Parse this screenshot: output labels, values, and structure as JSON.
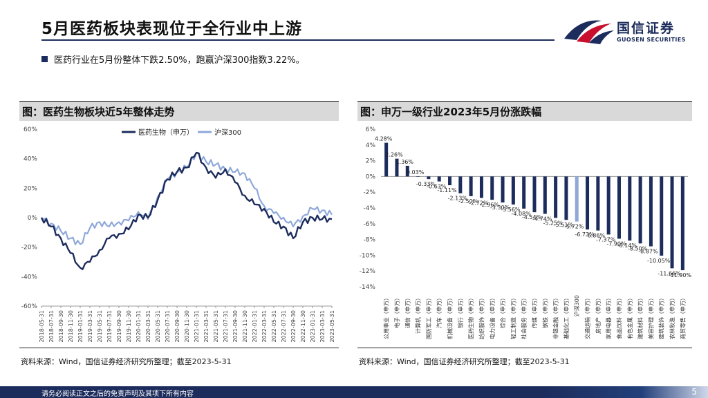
{
  "header": {
    "title": "5月医药板块表现位于全行业中上游"
  },
  "logo": {
    "cn": "国信证券",
    "en": "GUOSEN SECURITIES"
  },
  "summary": {
    "text": "医药行业在5月份整体下跌2.50%，跑赢沪深300指数3.22%。"
  },
  "left_panel": {
    "title": "图：医药生物板块近5年整体走势",
    "source": "资料来源：Wind，国信证券经济研究所整理；截至2023-5-31"
  },
  "right_panel": {
    "title": "图：申万一级行业2023年5月份涨跌幅",
    "source": "资料来源：Wind，国信证券经济研究所整理；截至2023-5-31"
  },
  "footer": {
    "disclaimer": "请务必阅读正文之后的免责声明及其项下所有内容",
    "page": "5"
  },
  "colors": {
    "dark": "#1c2c5c",
    "light": "#8fa8da",
    "brand_red": "#c8102e"
  },
  "chart_data": [
    {
      "type": "line",
      "title": "",
      "ylim": [
        -60,
        60
      ],
      "yticks": [
        60,
        40,
        20,
        0,
        -20,
        -40,
        -60
      ],
      "ytick_labels": [
        "60%",
        "40%",
        "20%",
        "0%",
        "-20%",
        "-40%",
        "-60%"
      ],
      "x": [
        "2018-05-31",
        "2018-07-31",
        "2018-09-30",
        "2018-11-30",
        "2019-01-31",
        "2019-03-31",
        "2019-05-31",
        "2019-07-31",
        "2019-09-30",
        "2019-11-30",
        "2020-01-31",
        "2020-03-31",
        "2020-05-31",
        "2020-07-31",
        "2020-09-30",
        "2020-11-30",
        "2021-01-31",
        "2021-03-31",
        "2021-05-31",
        "2021-07-31",
        "2021-09-30",
        "2021-11-30",
        "2022-01-31",
        "2022-03-31",
        "2022-05-31",
        "2022-07-31",
        "2022-09-30",
        "2022-11-30",
        "2023-01-31",
        "2023-03-31",
        "2023-05-31"
      ],
      "legend": [
        "医药生物（申万）",
        "沪深300"
      ],
      "series": [
        {
          "name": "医药生物（申万）",
          "color": "#1c2c5c",
          "width": 2.4,
          "values": [
            0,
            -6,
            -14,
            -24,
            -34,
            -30,
            -22,
            -14,
            -11,
            -8,
            2,
            0,
            12,
            26,
            31,
            34,
            44,
            34,
            27,
            33,
            24,
            15,
            9,
            6,
            -3,
            -6,
            -14,
            -3,
            0,
            -1,
            -1
          ]
        },
        {
          "name": "沪深300",
          "color": "#8fa8da",
          "width": 2.2,
          "values": [
            0,
            -4,
            -9,
            -14,
            -18,
            -7,
            -3,
            -6,
            -3,
            -2,
            4,
            -1,
            14,
            26,
            31,
            34,
            44,
            38,
            36,
            33,
            31,
            30,
            20,
            8,
            3,
            0,
            -6,
            1,
            6,
            5,
            2
          ]
        }
      ]
    },
    {
      "type": "bar",
      "title": "",
      "ylim": [
        -14,
        6
      ],
      "yticks": [
        6,
        4,
        2,
        0,
        -2,
        -4,
        -6,
        -8,
        -10,
        -12,
        -14
      ],
      "ytick_labels": [
        "6%",
        "4%",
        "2%",
        "0%",
        "-2%",
        "-4%",
        "-6%",
        "-8%",
        "-10%",
        "-12%",
        "-14%"
      ],
      "categories": [
        "公用事业（申万）",
        "电子（申万）",
        "通信（申万）",
        "计算机（申万）",
        "国防军工（申万）",
        "汽车（申万）",
        "机械设备（申万）",
        "银行（申万）",
        "医药生物（申万）",
        "纺织服饰（申万）",
        "电力设备（申万）",
        "综合（申万）",
        "轻工制造（申万）",
        "社会服务（申万）",
        "传媒（申万）",
        "钢铁（申万）",
        "非银金融（申万）",
        "基础化工（申万）",
        "沪深300",
        "交通运输（申万）",
        "房地产（申万）",
        "家用电器（申万）",
        "食品饮料（申万）",
        "有色金属（申万）",
        "建筑材料（申万）",
        "美容护理（申万）",
        "建筑装饰（申万）",
        "农林牧渔（申万）",
        "商贸零售（申万）"
      ],
      "values": [
        4.28,
        2.26,
        1.36,
        0.03,
        -0.33,
        -0.63,
        -1.11,
        -2.13,
        -2.5,
        -2.72,
        -2.96,
        -3.3,
        -3.56,
        -4.08,
        -4.54,
        -4.74,
        -5.25,
        -5.51,
        -5.72,
        -6.73,
        -6.86,
        -7.37,
        -7.9,
        -8.14,
        -8.5,
        -8.87,
        -10.05,
        -11.66,
        -11.9
      ],
      "labels": [
        "4.28%",
        "2.26%",
        "1.36%",
        "0.03%",
        "-0.33%",
        "-0.63%",
        "-1.11%",
        "-2.13%",
        "-2.50%",
        "-2.72%",
        "-2.96%",
        "-3.30%",
        "-3.56%",
        "-4.08%",
        "-4.54%",
        "-4.74%",
        "-5.25%",
        "-5.51%",
        "-5.72%",
        "-6.73%",
        "-6.86%",
        "-7.37%",
        "-7.90%",
        "-8.14%",
        "-8.50%",
        "-8.87%",
        "-10.05%",
        "-11.66%",
        "-11.90%"
      ],
      "highlight_index": 18
    }
  ]
}
